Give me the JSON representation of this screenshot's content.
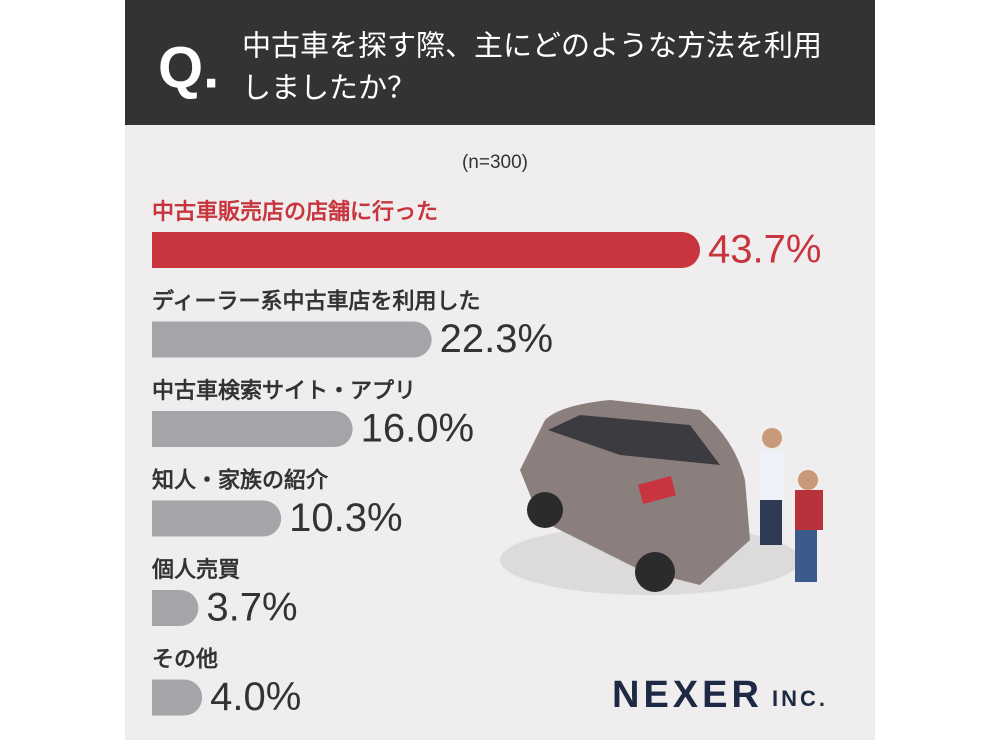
{
  "header": {
    "mark": "Q.",
    "question": [
      "中古車を探す際、主にどのような方法を利用",
      "しましたか？"
    ]
  },
  "chart_data": {
    "type": "bar",
    "orientation": "horizontal",
    "subtitle": "(n=300)",
    "categories": [
      "中古車販売店の店舗に行った",
      "ディーラー系中古車店を利用した",
      "中古車検索サイト・アプリ",
      "知人・家族の紹介",
      "個人売買",
      "その他"
    ],
    "values": [
      43.7,
      22.3,
      16.0,
      10.3,
      3.7,
      4.0
    ],
    "value_labels": [
      "43.7%",
      "22.3%",
      "16.0%",
      "10.3%",
      "3.7%",
      "4.0%"
    ],
    "colors": [
      "#c8353e",
      "#a4a5a9",
      "#a4a5a9",
      "#a4a5a9",
      "#a4a5a9",
      "#a4a5a9"
    ],
    "label_colors": [
      "#c8353e",
      "#333333",
      "#333333",
      "#333333",
      "#333333",
      "#333333"
    ]
  },
  "logo": {
    "name": "NEXER",
    "suffix": "INC."
  }
}
